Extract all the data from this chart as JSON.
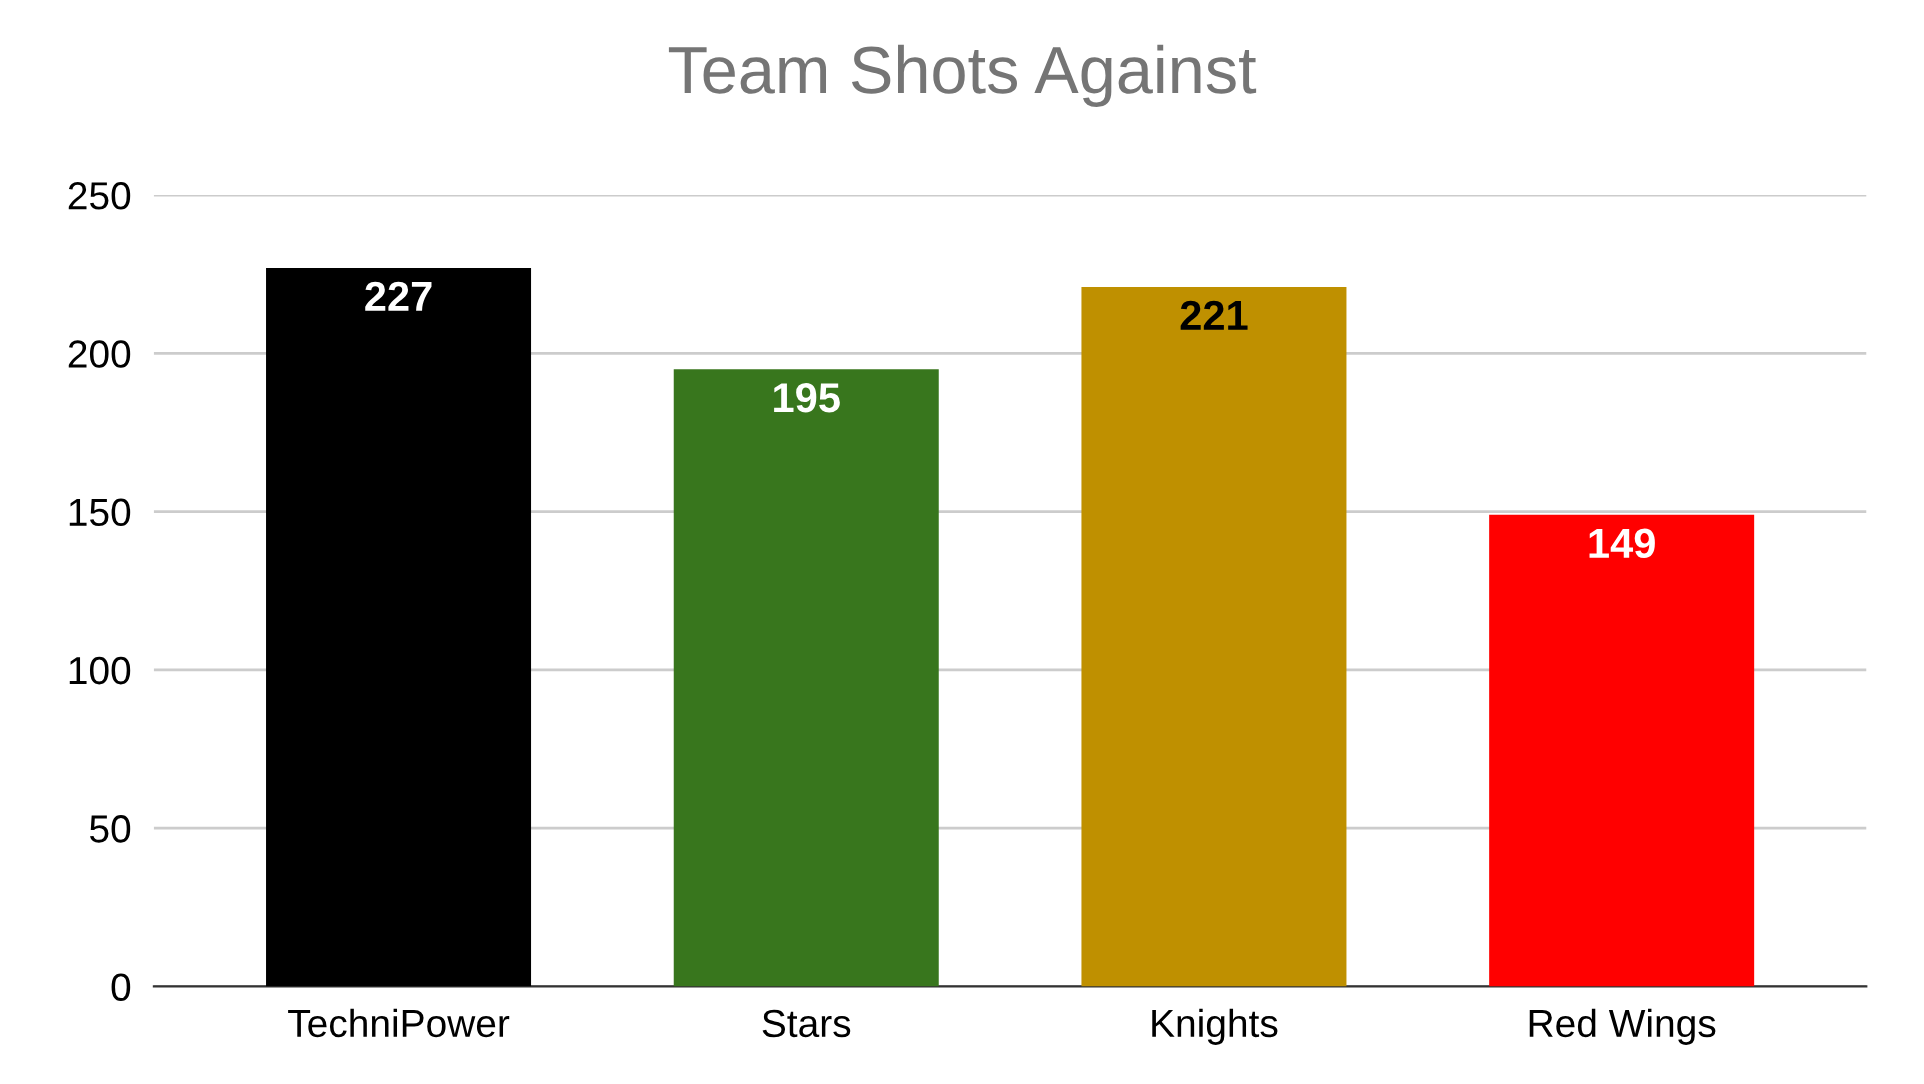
{
  "chart_data": {
    "type": "bar",
    "title": "Team Shots Against",
    "categories": [
      "TechniPower",
      "Stars",
      "Knights",
      "Red Wings"
    ],
    "values": [
      227,
      195,
      221,
      149
    ],
    "colors": [
      "#000000",
      "#38761d",
      "#bf9000",
      "#ff0000"
    ],
    "ylim": [
      0,
      250
    ],
    "yticks": [
      0,
      50,
      100,
      150,
      200,
      250
    ],
    "grid": "y",
    "legend": false,
    "data_labels": true
  }
}
